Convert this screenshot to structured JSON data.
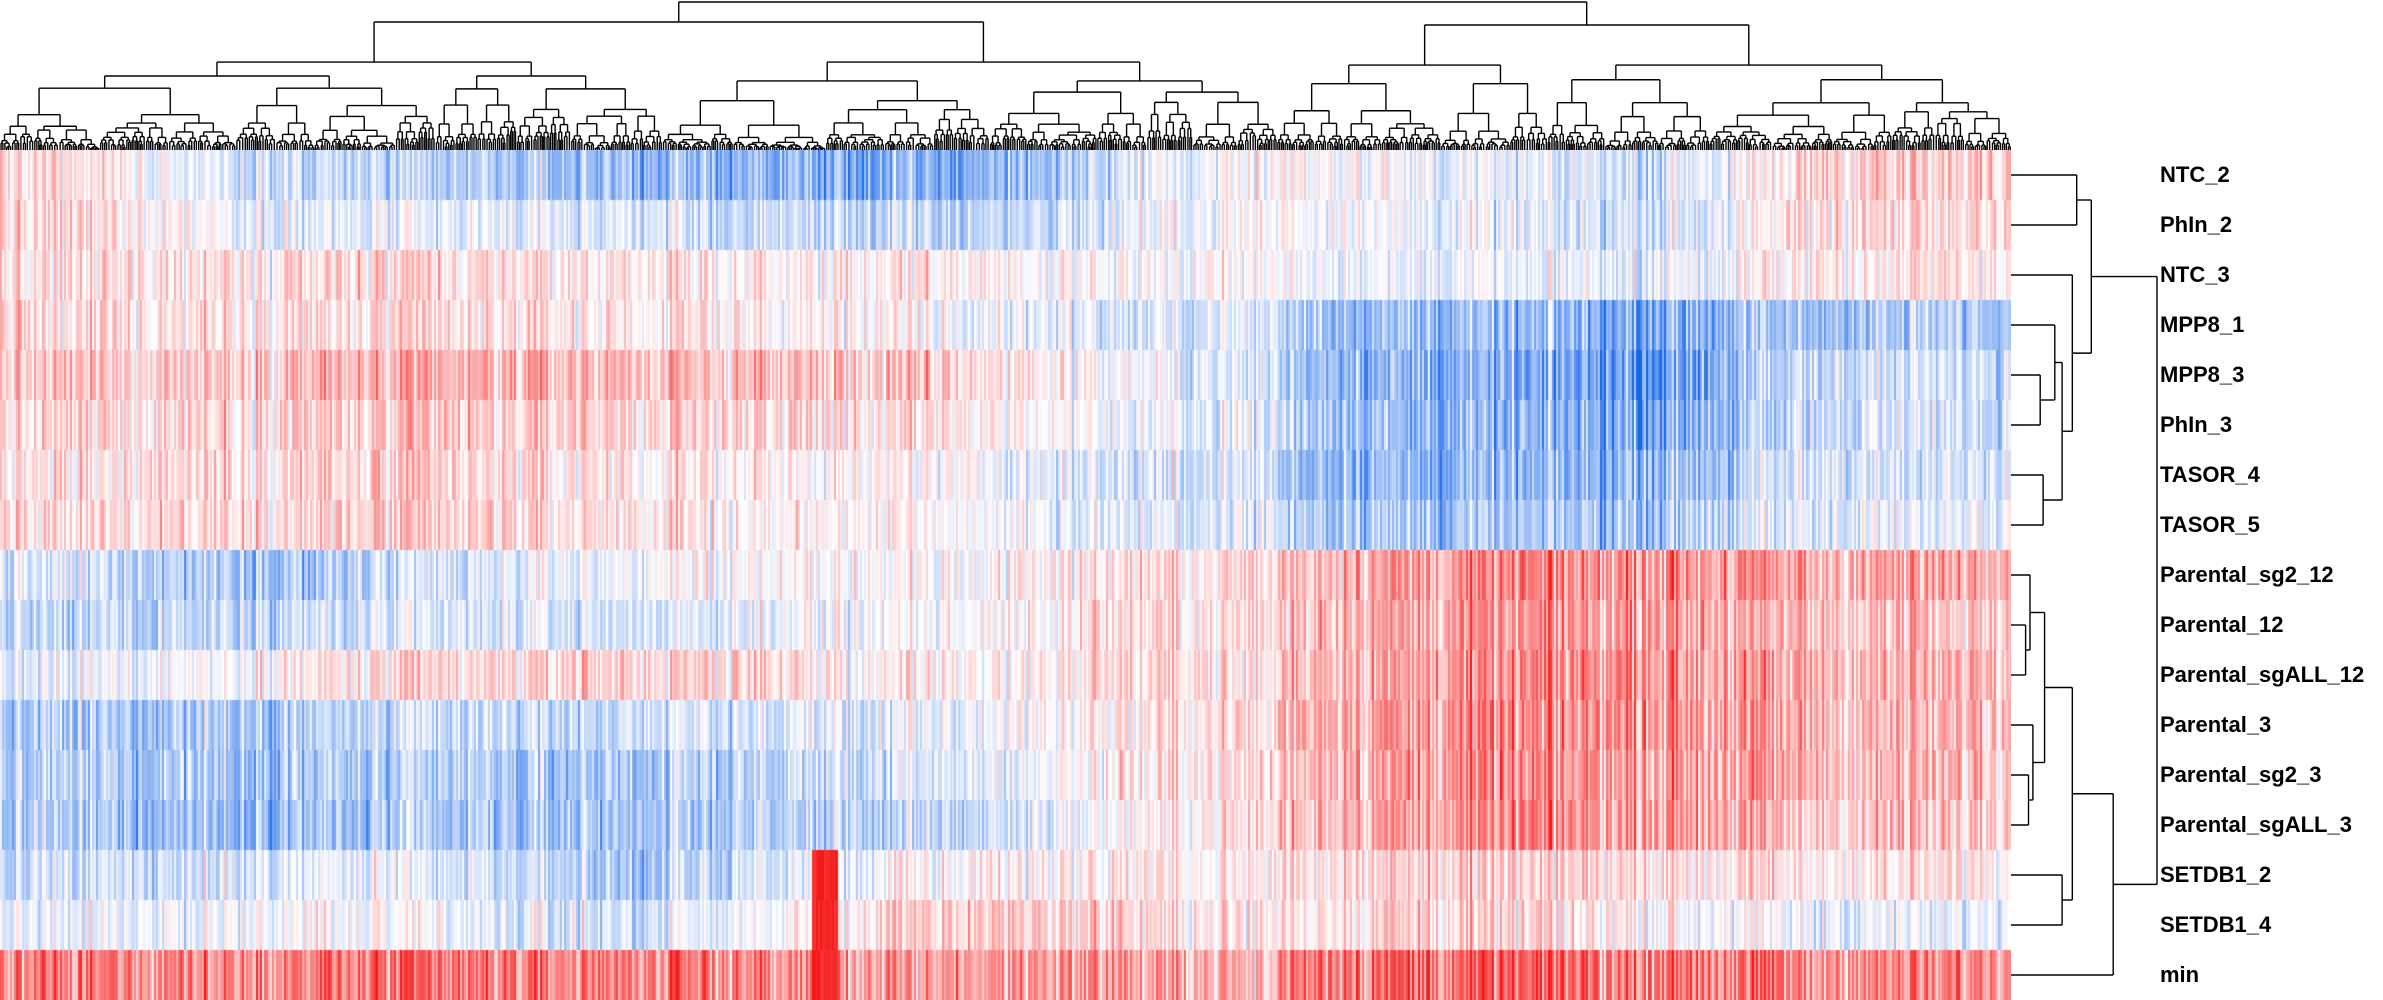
{
  "chart_data": {
    "type": "heatmap",
    "title": "",
    "xlabel": "",
    "ylabel": "",
    "rows": [
      "NTC_2",
      "PhIn_2",
      "NTC_3",
      "MPP8_1",
      "MPP8_3",
      "PhIn_3",
      "TASOR_4",
      "TASOR_5",
      "Parental_sg2_12",
      "Parental_12",
      "Parental_sgALL_12",
      "Parental_3",
      "Parental_sg2_3",
      "Parental_sgALL_3",
      "SETDB1_2",
      "SETDB1_4",
      "min"
    ],
    "column_labels_shown": false,
    "column_clusters": [
      {
        "width_fraction": 0.635
      },
      {
        "width_fraction": 0.365
      }
    ],
    "row_profiles": [
      [
        0.25,
        -0.25,
        -0.45,
        -0.55,
        0.1,
        -0.1,
        -0.2,
        0.2
      ],
      [
        0.2,
        -0.1,
        -0.15,
        -0.3,
        0.05,
        -0.1,
        -0.2,
        0.15
      ],
      [
        0.1,
        0.15,
        0.1,
        0.05,
        0.0,
        -0.1,
        -0.1,
        0.1
      ],
      [
        0.15,
        0.15,
        0.1,
        0.0,
        -0.3,
        -0.45,
        -0.55,
        -0.35
      ],
      [
        0.2,
        0.3,
        0.3,
        0.2,
        -0.3,
        -0.55,
        -0.65,
        -0.2
      ],
      [
        0.15,
        0.2,
        0.2,
        0.1,
        -0.25,
        -0.5,
        -0.55,
        -0.2
      ],
      [
        0.1,
        0.2,
        0.1,
        0.0,
        -0.35,
        -0.5,
        -0.45,
        -0.15
      ],
      [
        0.15,
        0.2,
        0.1,
        0.0,
        -0.25,
        -0.4,
        -0.35,
        -0.1
      ],
      [
        -0.15,
        -0.35,
        0.0,
        0.0,
        0.3,
        0.45,
        0.5,
        0.35
      ],
      [
        -0.3,
        -0.2,
        -0.15,
        0.0,
        0.3,
        0.4,
        0.45,
        0.25
      ],
      [
        -0.15,
        0.1,
        0.2,
        0.05,
        0.3,
        0.4,
        0.5,
        0.3
      ],
      [
        -0.35,
        -0.3,
        -0.2,
        -0.1,
        0.35,
        0.45,
        0.5,
        0.3
      ],
      [
        -0.3,
        -0.35,
        -0.35,
        -0.15,
        0.3,
        0.45,
        0.45,
        0.3
      ],
      [
        -0.35,
        -0.4,
        -0.35,
        -0.25,
        0.3,
        0.45,
        0.45,
        0.25
      ],
      [
        -0.25,
        -0.1,
        -0.35,
        0.05,
        0.15,
        0.2,
        0.15,
        0.1
      ],
      [
        -0.1,
        0.0,
        -0.2,
        0.25,
        0.15,
        0.2,
        0.05,
        -0.1
      ],
      [
        0.5,
        0.55,
        0.55,
        0.4,
        0.6,
        0.65,
        0.6,
        0.5
      ]
    ],
    "highlight_stripe": {
      "column_fraction": 0.41,
      "rows": [
        "SETDB1_2",
        "SETDB1_4",
        "min"
      ],
      "value": 1.0
    },
    "row_dendrogram": [
      {
        "a": "NTC_2",
        "b": "PhIn_2",
        "height": 0.45
      },
      {
        "a": "MPP8_3",
        "b": "PhIn_3",
        "height": 0.2
      },
      {
        "a": "TASOR_4",
        "b": "TASOR_5",
        "height": 0.22
      },
      {
        "a": "MPP8_1",
        "b": "MPP8_3+PhIn_3",
        "height": 0.3
      },
      {
        "a": "MPP8_1+MPP8_3+PhIn_3",
        "b": "TASOR_4+TASOR_5",
        "height": 0.35
      },
      {
        "a": "NTC_3",
        "b": "MPP8_1+MPP8_3+PhIn_3+TASOR_4+TASOR_5",
        "height": 0.42
      },
      {
        "a": "NTC_2+PhIn_2",
        "b": "NTC_3+MPP8_1+MPP8_3+PhIn_3+TASOR_4+TASOR_5",
        "height": 0.55
      },
      {
        "a": "Parental_12",
        "b": "Parental_sgALL_12",
        "height": 0.1
      },
      {
        "a": "Parental_sg2_12",
        "b": "Parental_12+Parental_sgALL_12",
        "height": 0.13
      },
      {
        "a": "Parental_sg2_3",
        "b": "Parental_sgALL_3",
        "height": 0.12
      },
      {
        "a": "Parental_3",
        "b": "Parental_sg2_3+Parental_sgALL_3",
        "height": 0.15
      },
      {
        "a": "Parental_sg2_12+Parental_12+Parental_sgALL_12",
        "b": "Parental_3+Parental_sg2_3+Parental_sgALL_3",
        "height": 0.23
      },
      {
        "a": "SETDB1_2",
        "b": "SETDB1_4",
        "height": 0.35
      },
      {
        "a": "Parental_sg2_12+Parental_12+Parental_sgALL_12+Parental_3+Parental_sg2_3+Parental_sgALL_3",
        "b": "SETDB1_2+SETDB1_4",
        "height": 0.42
      },
      {
        "a": "Parental_sg2_12+Parental_12+Parental_sgALL_12+Parental_3+Parental_sg2_3+Parental_sgALL_3+SETDB1_2+SETDB1_4",
        "b": "min",
        "height": 0.7
      },
      {
        "a": "NTC_2+PhIn_2+NTC_3+MPP8_1+MPP8_3+PhIn_3+TASOR_4+TASOR_5",
        "b": "Parental_sg2_12+Parental_12+Parental_sgALL_12+Parental_3+Parental_sg2_3+Parental_sgALL_3+SETDB1_2+SETDB1_4+min",
        "height": 1.0
      }
    ],
    "color_scale": {
      "low": "#1565e8",
      "mid": "#ffffff",
      "high": "#f51414"
    },
    "legend": "none",
    "grid": false
  }
}
